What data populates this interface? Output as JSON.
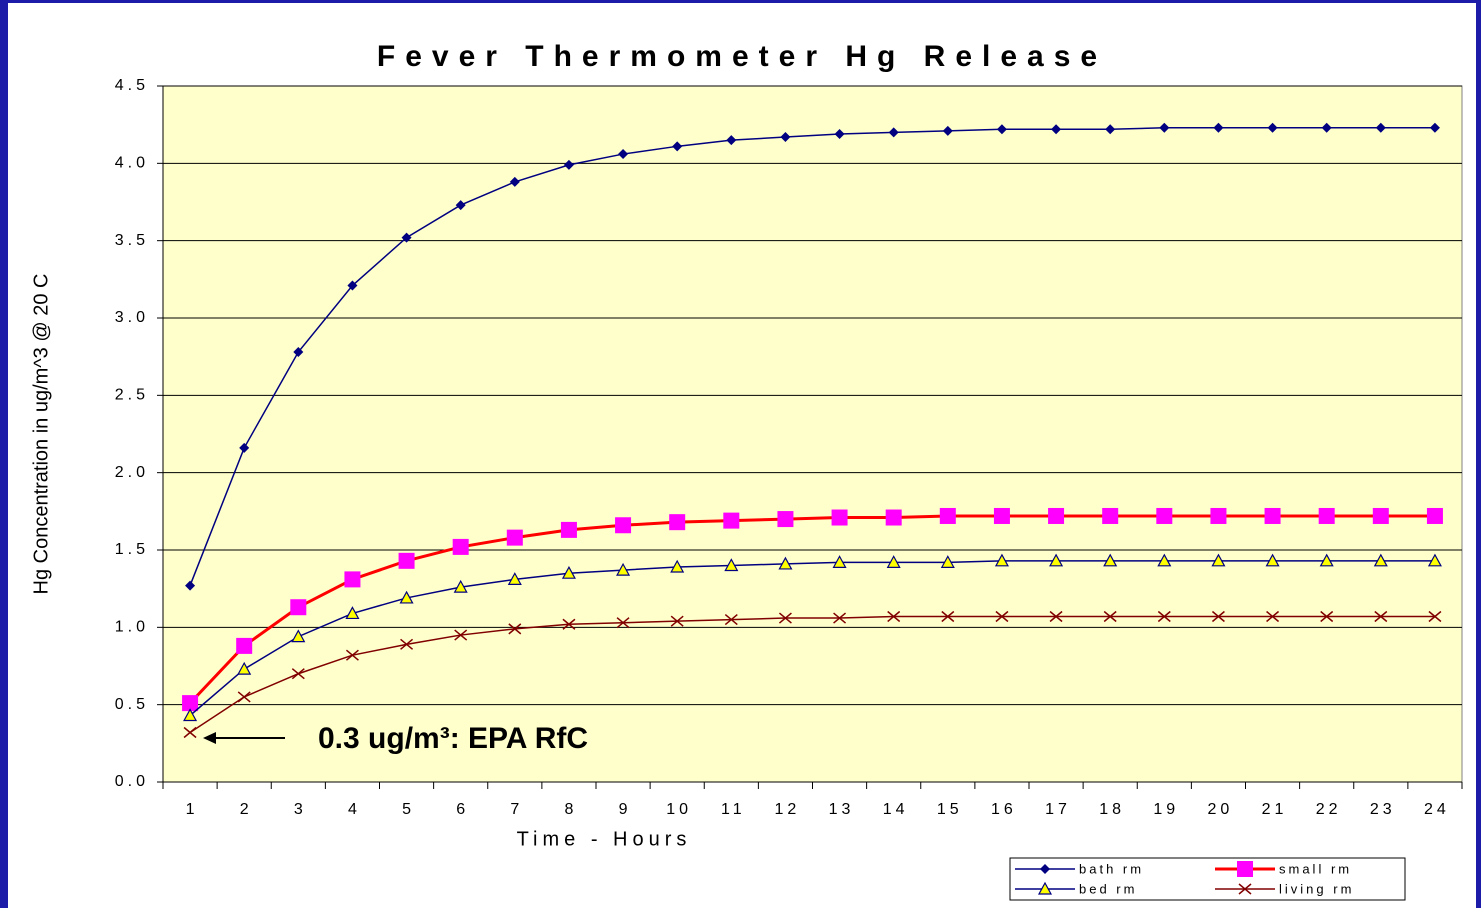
{
  "chart_data": {
    "type": "line",
    "title": "Fever Thermometer Hg Release",
    "x_label": "Time - Hours",
    "y_label": "Hg Concentration in ug/m^3 @  20 C",
    "categories": [
      "1",
      "2",
      "3",
      "4",
      "5",
      "6",
      "7",
      "8",
      "9",
      "10",
      "11",
      "12",
      "13",
      "14",
      "15",
      "16",
      "17",
      "18",
      "19",
      "20",
      "21",
      "22",
      "23",
      "24"
    ],
    "series": [
      {
        "name": "bath rm",
        "color": "#000080",
        "marker": "diamond",
        "values": [
          1.27,
          2.16,
          2.78,
          3.21,
          3.52,
          3.73,
          3.88,
          3.99,
          4.06,
          4.11,
          4.15,
          4.17,
          4.19,
          4.2,
          4.21,
          4.22,
          4.22,
          4.22,
          4.23,
          4.23,
          4.23,
          4.23,
          4.23,
          4.23
        ]
      },
      {
        "name": "small rm",
        "color": "#ff0000",
        "marker": "square",
        "values": [
          0.51,
          0.88,
          1.13,
          1.31,
          1.43,
          1.52,
          1.58,
          1.63,
          1.66,
          1.68,
          1.69,
          1.7,
          1.71,
          1.71,
          1.72,
          1.72,
          1.72,
          1.72,
          1.72,
          1.72,
          1.72,
          1.72,
          1.72,
          1.72
        ]
      },
      {
        "name": "bed rm",
        "color": "#000080",
        "marker": "triangle",
        "values": [
          0.43,
          0.73,
          0.94,
          1.09,
          1.19,
          1.26,
          1.31,
          1.35,
          1.37,
          1.39,
          1.4,
          1.41,
          1.42,
          1.42,
          1.42,
          1.43,
          1.43,
          1.43,
          1.43,
          1.43,
          1.43,
          1.43,
          1.43,
          1.43
        ]
      },
      {
        "name": "living rm",
        "color": "#800000",
        "marker": "x",
        "values": [
          0.32,
          0.55,
          0.7,
          0.82,
          0.89,
          0.95,
          0.99,
          1.02,
          1.03,
          1.04,
          1.05,
          1.06,
          1.06,
          1.07,
          1.07,
          1.07,
          1.07,
          1.07,
          1.07,
          1.07,
          1.07,
          1.07,
          1.07,
          1.07
        ]
      }
    ],
    "ylim": [
      0,
      4.5
    ],
    "yticks": [
      {
        "value": 0,
        "label": "0.0"
      },
      {
        "value": 0.5,
        "label": "0.5"
      },
      {
        "value": 1,
        "label": "1.0"
      },
      {
        "value": 1.5,
        "label": "1.5"
      },
      {
        "value": 2,
        "label": "2.0"
      },
      {
        "value": 2.5,
        "label": "2.5"
      },
      {
        "value": 3,
        "label": "3.0"
      },
      {
        "value": 3.5,
        "label": "3.5"
      },
      {
        "value": 4,
        "label": "4.0"
      },
      {
        "value": 4.5,
        "label": "4.5"
      }
    ],
    "grid": true,
    "annotation": "0.3 ug/m³: EPA RfC"
  }
}
